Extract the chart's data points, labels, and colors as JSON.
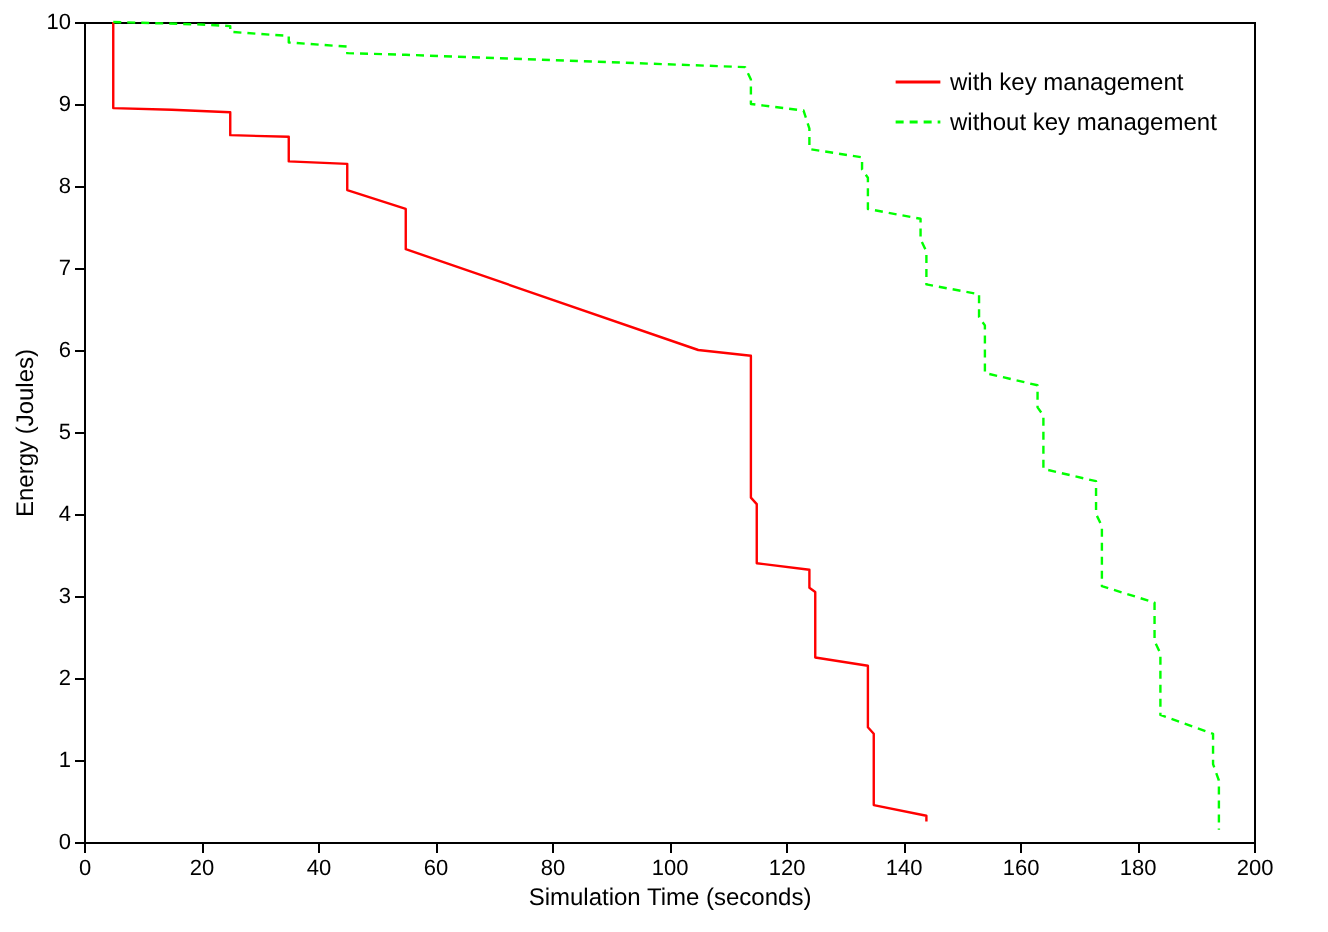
{
  "chart_data": {
    "type": "line",
    "xlabel": "Simulation Time (seconds)",
    "ylabel": "Energy (Joules)",
    "xlim": [
      0,
      200
    ],
    "ylim": [
      0,
      10
    ],
    "xticks": [
      0,
      20,
      40,
      60,
      80,
      100,
      120,
      140,
      160,
      180,
      200
    ],
    "yticks": [
      0,
      1,
      2,
      3,
      4,
      5,
      6,
      7,
      8,
      9,
      10
    ],
    "grid": false,
    "legend": "top right",
    "marker": "none",
    "series": [
      {
        "name": "with key management",
        "color": "#ff0000",
        "line_style": "solid",
        "x": [
          5,
          5,
          15,
          25,
          25,
          35,
          35,
          45,
          45,
          55,
          55,
          105,
          114,
          114,
          115,
          115,
          124,
          124,
          125,
          125,
          134,
          134,
          135,
          135,
          144,
          144
        ],
        "values": [
          10,
          8.95,
          8.93,
          8.9,
          8.62,
          8.6,
          8.3,
          8.27,
          7.95,
          7.72,
          7.23,
          6.0,
          5.93,
          4.2,
          4.12,
          3.4,
          3.32,
          3.1,
          3.05,
          2.25,
          2.15,
          1.4,
          1.32,
          0.45,
          0.32,
          0.25
        ]
      },
      {
        "name": "without key management",
        "color": "#00ff00",
        "line_style": "dashed",
        "x": [
          5,
          20,
          25,
          25,
          35,
          35,
          45,
          45,
          55,
          113,
          114,
          114,
          123,
          124,
          124,
          133,
          133,
          134,
          134,
          143,
          143,
          144,
          144,
          153,
          153,
          154,
          154,
          163,
          163,
          164,
          164,
          173,
          173,
          174,
          174,
          183,
          183,
          184,
          184,
          193,
          193,
          194,
          194
        ],
        "values": [
          10,
          9.97,
          9.95,
          9.88,
          9.83,
          9.75,
          9.7,
          9.62,
          9.6,
          9.45,
          9.3,
          9.0,
          8.92,
          8.7,
          8.45,
          8.35,
          8.2,
          8.1,
          7.72,
          7.6,
          7.35,
          7.2,
          6.8,
          6.68,
          6.4,
          6.3,
          5.72,
          5.57,
          5.3,
          5.2,
          4.55,
          4.4,
          4.0,
          3.85,
          3.12,
          2.92,
          2.45,
          2.3,
          1.55,
          1.32,
          0.95,
          0.75,
          0.15
        ]
      }
    ]
  }
}
